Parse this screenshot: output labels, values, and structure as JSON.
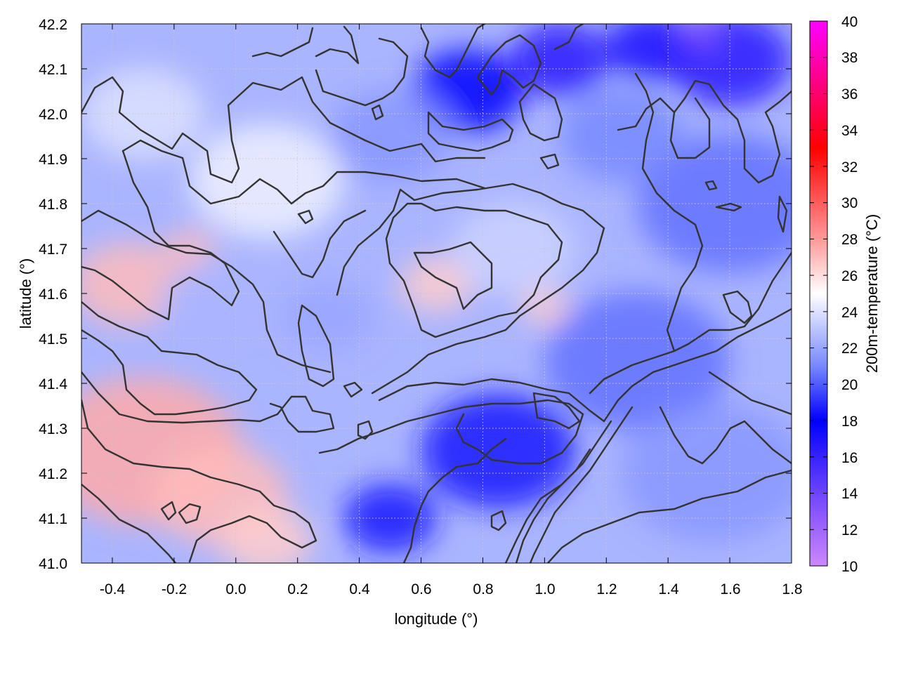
{
  "chart_data": {
    "type": "heatmap",
    "xlabel": "longitude (°)",
    "ylabel": "latitude (°)",
    "colorbar_label": "200m-temperature (°C)",
    "xlim": [
      -0.5,
      1.8
    ],
    "ylim": [
      41.0,
      42.2
    ],
    "x_ticks": [
      "-0.4",
      "-0.2",
      "0.0",
      "0.2",
      "0.4",
      "0.6",
      "0.8",
      "1.0",
      "1.2",
      "1.4",
      "1.6",
      "1.8"
    ],
    "y_ticks": [
      "41.0",
      "41.1",
      "41.2",
      "41.3",
      "41.4",
      "41.5",
      "41.6",
      "41.7",
      "41.8",
      "41.9",
      "42.0",
      "42.1",
      "42.2"
    ],
    "colorbar_range": [
      10,
      40
    ],
    "colorbar_ticks": [
      "10",
      "12",
      "14",
      "16",
      "18",
      "20",
      "22",
      "24",
      "26",
      "28",
      "30",
      "32",
      "34",
      "36",
      "38",
      "40"
    ],
    "grid": true,
    "colormap": [
      {
        "value": 10,
        "color": "#cc88ff"
      },
      {
        "value": 13,
        "color": "#8855ff"
      },
      {
        "value": 18,
        "color": "#0000ff"
      },
      {
        "value": 21,
        "color": "#7788ff"
      },
      {
        "value": 25,
        "color": "#ffffff"
      },
      {
        "value": 28,
        "color": "#ff9999"
      },
      {
        "value": 33,
        "color": "#ff0000"
      },
      {
        "value": 40,
        "color": "#ff00ff"
      }
    ],
    "field_blobs": [
      {
        "lon": -0.3,
        "lat": 41.25,
        "r": 0.32,
        "value": 27.5
      },
      {
        "lon": -0.35,
        "lat": 41.62,
        "r": 0.18,
        "value": 27
      },
      {
        "lon": -0.05,
        "lat": 41.15,
        "r": 0.22,
        "value": 27
      },
      {
        "lon": 0.1,
        "lat": 41.05,
        "r": 0.15,
        "value": 26.5
      },
      {
        "lon": -0.15,
        "lat": 41.7,
        "r": 0.08,
        "value": 27
      },
      {
        "lon": 0.65,
        "lat": 41.62,
        "r": 0.12,
        "value": 26.5
      },
      {
        "lon": 1.0,
        "lat": 41.57,
        "r": 0.08,
        "value": 26.5
      },
      {
        "lon": 0.1,
        "lat": 41.85,
        "r": 0.25,
        "value": 24.5
      },
      {
        "lon": -0.3,
        "lat": 42.0,
        "r": 0.2,
        "value": 24
      },
      {
        "lon": 0.9,
        "lat": 41.7,
        "r": 0.2,
        "value": 23.5
      },
      {
        "lon": 0.75,
        "lat": 42.05,
        "r": 0.18,
        "value": 18
      },
      {
        "lon": 1.05,
        "lat": 42.12,
        "r": 0.16,
        "value": 16.5
      },
      {
        "lon": 1.35,
        "lat": 42.15,
        "r": 0.15,
        "value": 17
      },
      {
        "lon": 1.6,
        "lat": 42.12,
        "r": 0.2,
        "value": 16.5
      },
      {
        "lon": 1.5,
        "lat": 42.18,
        "r": 0.06,
        "value": 13
      },
      {
        "lon": 0.85,
        "lat": 41.25,
        "r": 0.25,
        "value": 18.5
      },
      {
        "lon": 0.5,
        "lat": 41.1,
        "r": 0.15,
        "value": 18.5
      },
      {
        "lon": 1.3,
        "lat": 41.45,
        "r": 0.3,
        "value": 20.5
      },
      {
        "lon": 1.6,
        "lat": 41.8,
        "r": 0.3,
        "value": 20.5
      },
      {
        "lon": 1.55,
        "lat": 41.2,
        "r": 0.3,
        "value": 21.5
      },
      {
        "lon": 0.3,
        "lat": 41.55,
        "r": 0.15,
        "value": 22
      },
      {
        "lon": 0.5,
        "lat": 41.95,
        "r": 0.2,
        "value": 21.5
      },
      {
        "lon": 1.25,
        "lat": 41.95,
        "r": 0.2,
        "value": 21
      },
      {
        "lon": -0.1,
        "lat": 41.58,
        "r": 0.15,
        "value": 22.5
      }
    ]
  }
}
